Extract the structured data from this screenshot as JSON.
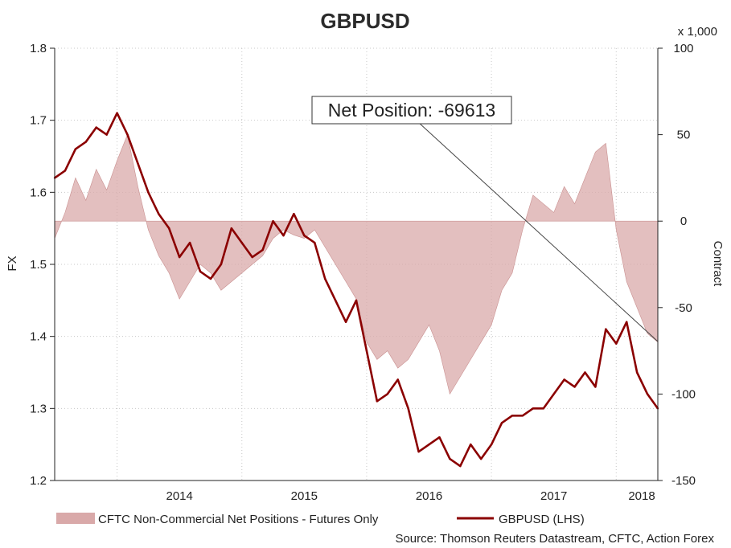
{
  "chart_data": {
    "type": "line",
    "title": "GBPUSD",
    "left_axis": {
      "label": "FX",
      "ylim": [
        1.2,
        1.8
      ],
      "ticks": [
        "1.2",
        "1.3",
        "1.4",
        "1.5",
        "1.6",
        "1.7",
        "1.8"
      ]
    },
    "right_axis": {
      "label": "Contract",
      "multiplier": "x 1,000",
      "ylim": [
        -150,
        100
      ],
      "ticks": [
        "-150",
        "-100",
        "-50",
        "0",
        "50",
        "100"
      ]
    },
    "x_axis": {
      "ticks": [
        "2014",
        "2015",
        "2016",
        "2017",
        "2018"
      ],
      "xlim": [
        "2013-07",
        "2018-05"
      ]
    },
    "grid": true,
    "legend": "bottom",
    "annotation": {
      "text": "Net Position: -69613",
      "points_to": {
        "x": "2018-05",
        "y": -69.613
      }
    },
    "series": [
      {
        "name": "CFTC Non-Commercial Net Positions - Futures Only",
        "type": "area",
        "axis": "right",
        "color": "#d9a9a9",
        "x": [
          "2013-07",
          "2013-08",
          "2013-09",
          "2013-10",
          "2013-11",
          "2013-12",
          "2014-01",
          "2014-02",
          "2014-03",
          "2014-04",
          "2014-05",
          "2014-06",
          "2014-07",
          "2014-08",
          "2014-09",
          "2014-10",
          "2014-11",
          "2014-12",
          "2015-01",
          "2015-02",
          "2015-03",
          "2015-04",
          "2015-05",
          "2015-06",
          "2015-07",
          "2015-08",
          "2015-09",
          "2015-10",
          "2015-11",
          "2015-12",
          "2016-01",
          "2016-02",
          "2016-03",
          "2016-04",
          "2016-05",
          "2016-06",
          "2016-07",
          "2016-08",
          "2016-09",
          "2016-10",
          "2016-11",
          "2016-12",
          "2017-01",
          "2017-02",
          "2017-03",
          "2017-04",
          "2017-05",
          "2017-06",
          "2017-07",
          "2017-08",
          "2017-09",
          "2017-10",
          "2017-11",
          "2017-12",
          "2018-01",
          "2018-02",
          "2018-03",
          "2018-04",
          "2018-05"
        ],
        "values": [
          -10,
          5,
          25,
          12,
          30,
          18,
          35,
          50,
          20,
          -5,
          -20,
          -30,
          -45,
          -35,
          -25,
          -30,
          -40,
          -35,
          -30,
          -25,
          -20,
          -10,
          -5,
          -8,
          -10,
          -5,
          -15,
          -25,
          -35,
          -45,
          -70,
          -80,
          -75,
          -85,
          -80,
          -70,
          -60,
          -75,
          -100,
          -90,
          -80,
          -70,
          -60,
          -40,
          -30,
          -5,
          15,
          10,
          5,
          20,
          10,
          25,
          40,
          45,
          -5,
          -35,
          -50,
          -65,
          -70
        ],
        "y_unit": "contracts x 1,000"
      },
      {
        "name": "GBPUSD (LHS)",
        "type": "line",
        "axis": "left",
        "color": "#8b0000",
        "x": [
          "2013-07",
          "2013-08",
          "2013-09",
          "2013-10",
          "2013-11",
          "2013-12",
          "2014-01",
          "2014-02",
          "2014-03",
          "2014-04",
          "2014-05",
          "2014-06",
          "2014-07",
          "2014-08",
          "2014-09",
          "2014-10",
          "2014-11",
          "2014-12",
          "2015-01",
          "2015-02",
          "2015-03",
          "2015-04",
          "2015-05",
          "2015-06",
          "2015-07",
          "2015-08",
          "2015-09",
          "2015-10",
          "2015-11",
          "2015-12",
          "2016-01",
          "2016-02",
          "2016-03",
          "2016-04",
          "2016-05",
          "2016-06",
          "2016-07",
          "2016-08",
          "2016-09",
          "2016-10",
          "2016-11",
          "2016-12",
          "2017-01",
          "2017-02",
          "2017-03",
          "2017-04",
          "2017-05",
          "2017-06",
          "2017-07",
          "2017-08",
          "2017-09",
          "2017-10",
          "2017-11",
          "2017-12",
          "2018-01",
          "2018-02",
          "2018-03",
          "2018-04",
          "2018-05"
        ],
        "values": [
          1.62,
          1.63,
          1.66,
          1.67,
          1.69,
          1.68,
          1.71,
          1.68,
          1.64,
          1.6,
          1.57,
          1.55,
          1.51,
          1.53,
          1.49,
          1.48,
          1.5,
          1.55,
          1.53,
          1.51,
          1.52,
          1.56,
          1.54,
          1.57,
          1.54,
          1.53,
          1.48,
          1.45,
          1.42,
          1.45,
          1.38,
          1.31,
          1.32,
          1.34,
          1.3,
          1.24,
          1.25,
          1.26,
          1.23,
          1.22,
          1.25,
          1.23,
          1.25,
          1.28,
          1.29,
          1.29,
          1.3,
          1.3,
          1.32,
          1.34,
          1.33,
          1.35,
          1.33,
          1.41,
          1.39,
          1.42,
          1.35,
          1.32,
          1.3
        ],
        "y_unit": "FX"
      }
    ]
  },
  "source_text": "Source: Thomson Reuters Datastream, CFTC, Action Forex"
}
